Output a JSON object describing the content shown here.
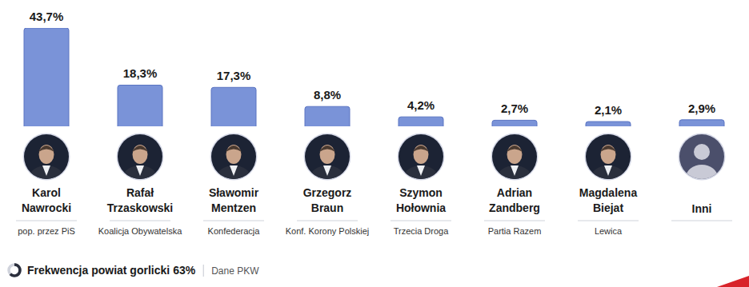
{
  "chart_data": {
    "type": "bar",
    "categories": [
      "Karol Nawrocki",
      "Rafał Trzaskowski",
      "Sławomir Mentzen",
      "Grzegorz Braun",
      "Szymon Hołownia",
      "Adrian Zandberg",
      "Magdalena Biejat",
      "Inni"
    ],
    "parties": [
      "pop. przez PiS",
      "Koalicja Obywatelska",
      "Konfederacja",
      "Konf. Korony Polskiej",
      "Trzecia Droga",
      "Partia Razem",
      "Lewica",
      null
    ],
    "values": [
      43.7,
      18.3,
      17.3,
      8.8,
      4.2,
      2.7,
      2.1,
      2.9
    ],
    "value_labels": [
      "43,7%",
      "18,3%",
      "17,3%",
      "8,8%",
      "4,2%",
      "2,7%",
      "2,1%",
      "2,9%"
    ],
    "color": "#7a93d8",
    "ylim": [
      0,
      43.7
    ],
    "data_labels": true,
    "tick_labels": false,
    "turnout": {
      "label": "Frekwencja powiat gorlicki",
      "value": 63,
      "value_label": "63%"
    },
    "source": "Dane PKW"
  }
}
